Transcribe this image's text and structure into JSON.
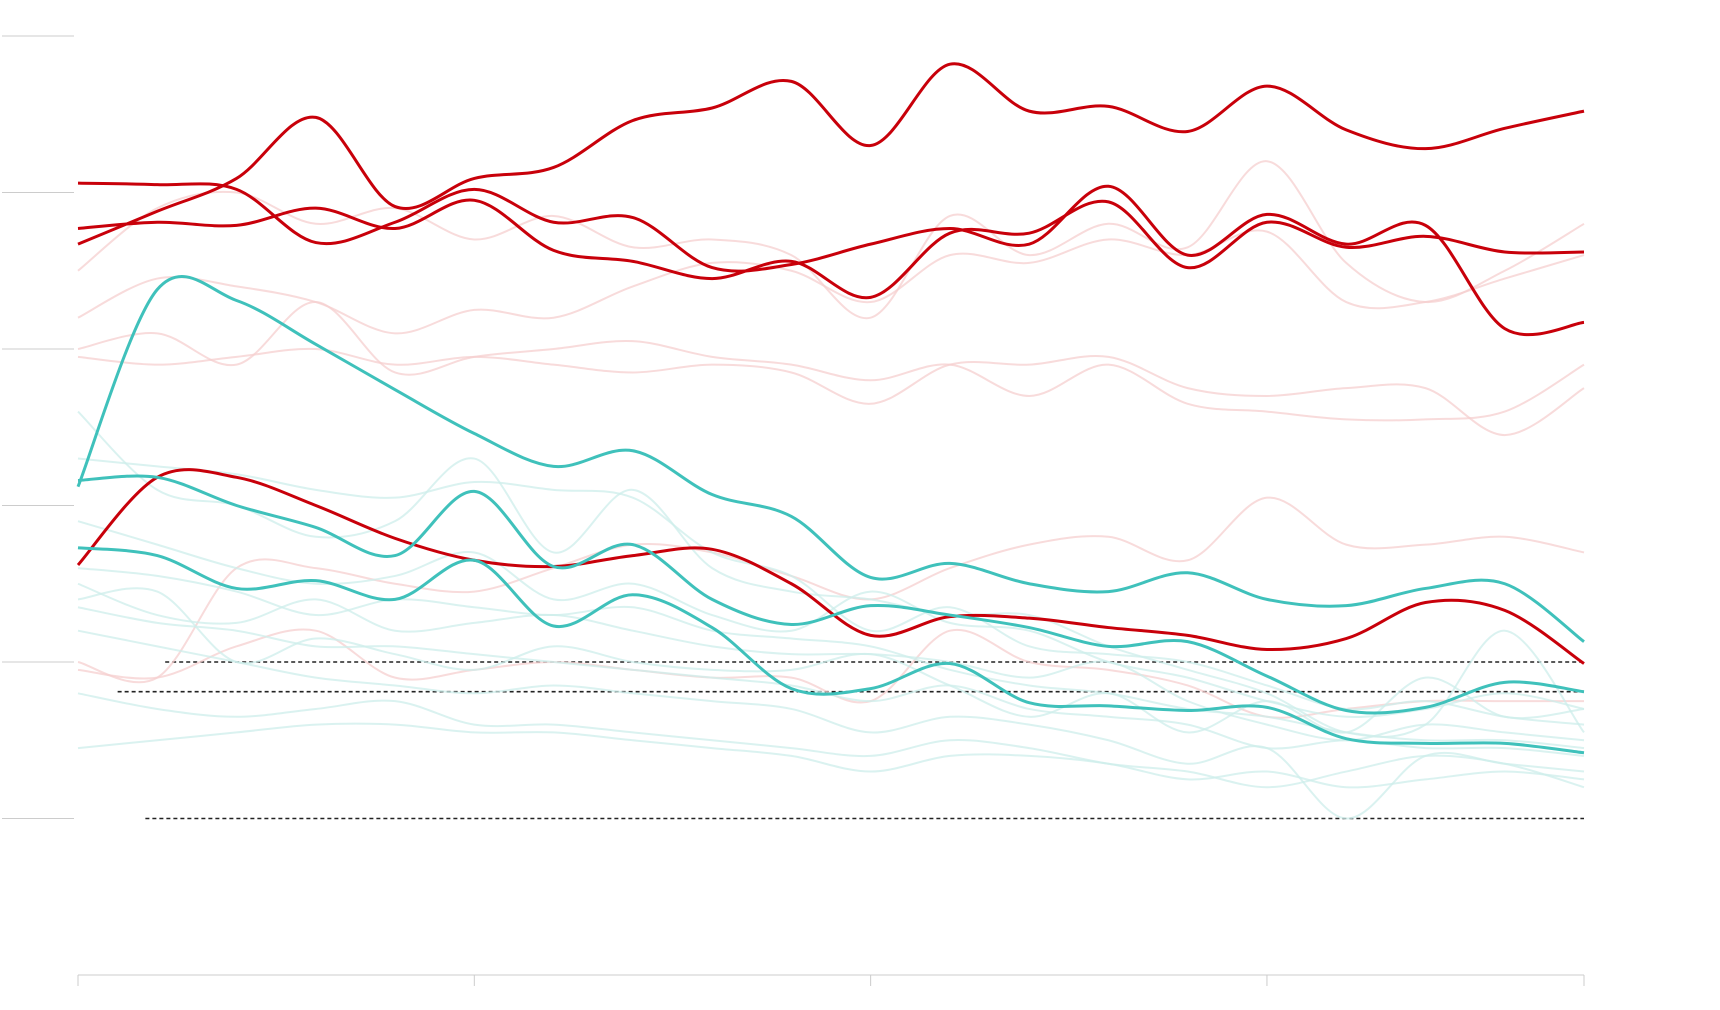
{
  "chart_data": {
    "type": "line",
    "x": [
      0,
      1,
      2,
      3,
      4,
      5,
      6,
      7,
      8,
      9,
      10,
      11,
      12,
      13,
      14,
      15,
      16,
      17,
      18,
      19
    ],
    "xlim": [
      0,
      19
    ],
    "xticks": [
      0,
      5,
      10,
      15,
      19
    ],
    "ylim": [
      0,
      6
    ],
    "yticks": [
      1,
      2,
      3,
      4,
      5,
      6
    ],
    "reference_lines": [
      {
        "y": 2,
        "x": [
          1.1,
          19
        ]
      },
      {
        "y": 1.81,
        "x": [
          0.5,
          19
        ]
      },
      {
        "y": 1,
        "x": [
          0.85,
          19
        ]
      }
    ],
    "series": [
      {
        "color": "#f6cfcf",
        "highlight": false,
        "values": [
          4.2,
          4.45,
          4.4,
          4.3,
          4.1,
          4.25,
          4.2,
          4.4,
          4.55,
          4.5,
          4.3,
          4.6,
          4.55,
          4.7,
          4.6,
          4.75,
          4.3,
          4.3,
          4.45,
          4.6
        ]
      },
      {
        "color": "#f6cfcf",
        "highlight": false,
        "values": [
          4.0,
          4.1,
          3.9,
          4.3,
          3.85,
          3.95,
          4.0,
          4.05,
          3.95,
          3.9,
          3.8,
          3.9,
          3.7,
          3.9,
          3.65,
          3.6,
          3.55,
          3.55,
          3.6,
          3.9
        ]
      },
      {
        "color": "#f6cfcf",
        "highlight": false,
        "values": [
          3.95,
          3.9,
          3.95,
          4.0,
          3.9,
          3.95,
          3.9,
          3.85,
          3.9,
          3.85,
          3.65,
          3.9,
          3.9,
          3.95,
          3.75,
          3.7,
          3.75,
          3.75,
          3.45,
          3.75
        ]
      },
      {
        "color": "#f6cfcf",
        "highlight": false,
        "values": [
          2.0,
          1.9,
          2.6,
          2.6,
          2.5,
          2.45,
          2.6,
          2.75,
          2.7,
          2.55,
          2.4,
          2.6,
          2.75,
          2.8,
          2.65,
          3.05,
          2.75,
          2.75,
          2.8,
          2.7
        ]
      },
      {
        "color": "#f6cfcf",
        "highlight": false,
        "values": [
          4.5,
          4.9,
          5.0,
          4.8,
          4.9,
          4.7,
          4.85,
          4.65,
          4.7,
          4.6,
          4.2,
          4.85,
          4.6,
          4.8,
          4.65,
          5.2,
          4.55,
          4.3,
          4.5,
          4.8
        ]
      },
      {
        "color": "#f6cfcf",
        "highlight": false,
        "values": [
          1.95,
          1.9,
          2.1,
          2.2,
          1.9,
          1.95,
          2.0,
          1.95,
          1.9,
          1.9,
          1.75,
          2.2,
          2.0,
          1.95,
          1.85,
          1.65,
          1.7,
          1.75,
          1.75,
          1.75
        ]
      },
      {
        "color": "#cdeeeb",
        "highlight": false,
        "values": [
          3.6,
          3.1,
          3.0,
          2.8,
          2.9,
          3.3,
          2.7,
          3.1,
          2.6,
          2.45,
          2.4,
          2.3,
          2.3,
          2.1,
          1.95,
          1.8,
          1.55,
          1.6,
          2.2,
          1.55
        ]
      },
      {
        "color": "#cdeeeb",
        "highlight": false,
        "values": [
          3.3,
          3.25,
          3.2,
          3.1,
          3.05,
          3.15,
          3.1,
          3.05,
          2.7,
          2.55,
          2.2,
          2.35,
          2.1,
          2.05,
          2.0,
          1.85,
          1.7,
          1.75,
          1.65,
          1.6
        ]
      },
      {
        "color": "#cdeeeb",
        "highlight": false,
        "values": [
          2.5,
          2.3,
          2.25,
          2.4,
          2.2,
          2.25,
          2.3,
          2.2,
          2.1,
          2.05,
          2.05,
          2.0,
          1.9,
          2.0,
          1.75,
          1.6,
          1.5,
          1.6,
          1.55,
          1.5
        ]
      },
      {
        "color": "#cdeeeb",
        "highlight": false,
        "values": [
          2.35,
          2.25,
          2.2,
          2.1,
          2.1,
          2.05,
          2.0,
          1.95,
          1.9,
          1.85,
          1.75,
          1.85,
          1.7,
          1.65,
          1.6,
          1.45,
          1.5,
          1.45,
          1.45,
          1.4
        ]
      },
      {
        "color": "#cdeeeb",
        "highlight": false,
        "values": [
          1.45,
          1.5,
          1.55,
          1.6,
          1.6,
          1.55,
          1.55,
          1.5,
          1.45,
          1.4,
          1.3,
          1.4,
          1.4,
          1.35,
          1.25,
          1.3,
          1.2,
          1.25,
          1.3,
          1.25
        ]
      },
      {
        "color": "#cdeeeb",
        "highlight": false,
        "values": [
          2.2,
          2.1,
          2.0,
          1.9,
          1.85,
          1.8,
          1.85,
          1.8,
          1.75,
          1.7,
          1.55,
          1.65,
          1.6,
          1.5,
          1.35,
          1.45,
          1.0,
          1.4,
          1.35,
          1.3
        ]
      },
      {
        "color": "#cdeeeb",
        "highlight": false,
        "values": [
          2.9,
          2.75,
          2.6,
          2.5,
          2.55,
          2.7,
          2.4,
          2.5,
          2.3,
          2.2,
          2.45,
          2.25,
          2.2,
          2.0,
          1.9,
          1.75,
          1.65,
          1.7,
          1.8,
          1.7
        ]
      },
      {
        "color": "#cdeeeb",
        "highlight": false,
        "values": [
          2.6,
          2.55,
          2.45,
          2.3,
          2.4,
          2.35,
          2.3,
          2.35,
          2.2,
          2.15,
          2.1,
          1.95,
          1.85,
          1.8,
          1.7,
          1.65,
          1.55,
          1.5,
          1.5,
          1.45
        ]
      },
      {
        "color": "#cdeeeb",
        "highlight": false,
        "values": [
          1.8,
          1.7,
          1.65,
          1.7,
          1.75,
          1.6,
          1.6,
          1.55,
          1.5,
          1.45,
          1.4,
          1.5,
          1.45,
          1.35,
          1.3,
          1.2,
          1.3,
          1.4,
          1.35,
          1.2
        ]
      },
      {
        "color": "#cdeeeb",
        "highlight": false,
        "values": [
          2.4,
          2.45,
          2.0,
          2.15,
          2.05,
          1.95,
          2.1,
          2.0,
          1.95,
          1.95,
          2.05,
          1.85,
          1.65,
          1.8,
          1.55,
          1.75,
          1.55,
          1.9,
          1.65,
          1.7
        ]
      },
      {
        "color": "#c8000a",
        "highlight": true,
        "values": [
          4.67,
          4.88,
          5.09,
          5.48,
          4.91,
          5.09,
          5.16,
          5.46,
          5.54,
          5.71,
          5.3,
          5.82,
          5.52,
          5.55,
          5.39,
          5.68,
          5.4,
          5.28,
          5.41,
          5.52
        ]
      },
      {
        "color": "#c8000a",
        "highlight": true,
        "values": [
          5.06,
          5.05,
          5.02,
          4.68,
          4.81,
          5.02,
          4.81,
          4.84,
          4.52,
          4.54,
          4.67,
          4.77,
          4.67,
          5.04,
          4.6,
          4.86,
          4.67,
          4.79,
          4.13,
          4.17
        ]
      },
      {
        "color": "#c8000a",
        "highlight": true,
        "values": [
          4.77,
          4.81,
          4.79,
          4.9,
          4.77,
          4.95,
          4.63,
          4.56,
          4.45,
          4.56,
          4.33,
          4.74,
          4.74,
          4.94,
          4.52,
          4.81,
          4.65,
          4.72,
          4.62,
          4.62
        ]
      },
      {
        "color": "#c8000a",
        "highlight": true,
        "values": [
          2.62,
          3.18,
          3.18,
          3.0,
          2.79,
          2.65,
          2.61,
          2.68,
          2.72,
          2.5,
          2.17,
          2.29,
          2.28,
          2.22,
          2.17,
          2.08,
          2.15,
          2.38,
          2.33,
          1.99
        ]
      },
      {
        "color": "#3fc1bb",
        "highlight": true,
        "values": [
          3.12,
          4.38,
          4.31,
          4.03,
          3.74,
          3.46,
          3.25,
          3.35,
          3.07,
          2.93,
          2.54,
          2.63,
          2.5,
          2.45,
          2.57,
          2.4,
          2.36,
          2.47,
          2.5,
          2.13
        ]
      },
      {
        "color": "#3fc1bb",
        "highlight": true,
        "values": [
          3.16,
          3.18,
          3.0,
          2.86,
          2.68,
          3.09,
          2.61,
          2.75,
          2.4,
          2.24,
          2.36,
          2.3,
          2.22,
          2.1,
          2.13,
          1.91,
          1.69,
          1.71,
          1.87,
          1.81
        ]
      },
      {
        "color": "#3fc1bb",
        "highlight": true,
        "values": [
          2.73,
          2.68,
          2.47,
          2.52,
          2.4,
          2.65,
          2.23,
          2.43,
          2.22,
          1.83,
          1.83,
          1.99,
          1.74,
          1.72,
          1.69,
          1.71,
          1.51,
          1.48,
          1.48,
          1.42
        ]
      }
    ]
  }
}
